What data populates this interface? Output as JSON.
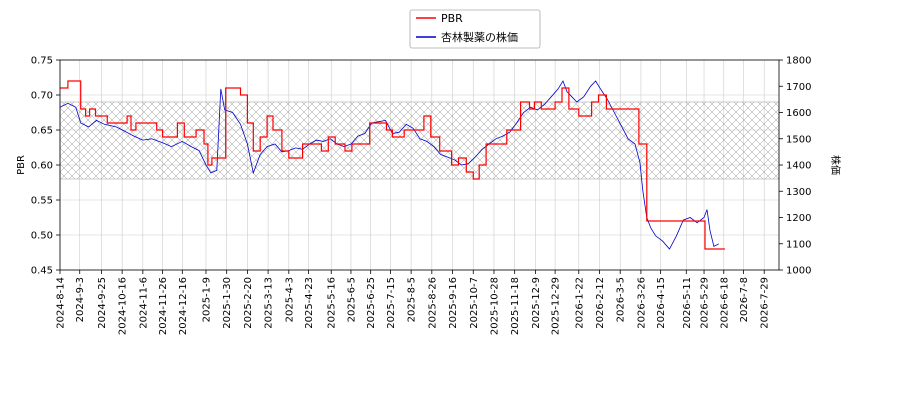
{
  "chart_data": {
    "type": "line",
    "legend": {
      "placement": "top-center",
      "entries": [
        "PBR",
        "杏林製薬の株価"
      ]
    },
    "ylabel_left": "PBR",
    "ylabel_right": "株価",
    "ylim_left": [
      0.45,
      0.75
    ],
    "ylim_right": [
      1000,
      1800
    ],
    "yticks_left": [
      "0.45",
      "0.50",
      "0.55",
      "0.60",
      "0.65",
      "0.70",
      "0.75"
    ],
    "yticks_right": [
      "1000",
      "1100",
      "1200",
      "1300",
      "1400",
      "1500",
      "1600",
      "1700",
      "1800"
    ],
    "x_range": [
      "2024-8-14",
      "2026-8-13"
    ],
    "xticks": [
      "2024-8-14",
      "2024-9-3",
      "2024-9-25",
      "2024-10-16",
      "2024-11-6",
      "2024-11-26",
      "2024-12-16",
      "2025-1-9",
      "2025-1-30",
      "2025-2-20",
      "2025-3-13",
      "2025-4-3",
      "2025-4-23",
      "2025-5-16",
      "2025-6-5",
      "2025-6-25",
      "2025-7-15",
      "2025-8-5",
      "2025-8-26",
      "2025-9-16",
      "2025-10-7",
      "2025-10-28",
      "2025-11-18",
      "2025-12-9",
      "2025-12-29",
      "2026-1-22",
      "2026-2-12",
      "2026-3-5",
      "2026-3-26",
      "2026-4-15",
      "2026-5-11",
      "2026-5-29",
      "2026-6-18",
      "2026-7-8",
      "2026-7-29"
    ],
    "grid": true,
    "band": {
      "axis": "left",
      "range": [
        0.58,
        0.69
      ],
      "style": "crosshatch"
    },
    "series": [
      {
        "name": "PBR",
        "axis": "left",
        "color": "#ff0000",
        "style": "step",
        "points": [
          [
            "2024-8-14",
            0.71
          ],
          [
            "2024-8-22",
            0.72
          ],
          [
            "2024-9-4",
            0.68
          ],
          [
            "2024-9-9",
            0.67
          ],
          [
            "2024-9-13",
            0.68
          ],
          [
            "2024-9-19",
            0.67
          ],
          [
            "2024-10-1",
            0.66
          ],
          [
            "2024-10-21",
            0.67
          ],
          [
            "2024-10-25",
            0.65
          ],
          [
            "2024-10-30",
            0.66
          ],
          [
            "2024-11-20",
            0.65
          ],
          [
            "2024-11-26",
            0.64
          ],
          [
            "2024-12-11",
            0.66
          ],
          [
            "2024-12-18",
            0.64
          ],
          [
            "2024-12-30",
            0.65
          ],
          [
            "2025-1-7",
            0.63
          ],
          [
            "2025-1-11",
            0.6
          ],
          [
            "2025-1-15",
            0.61
          ],
          [
            "2025-1-29",
            0.71
          ],
          [
            "2025-2-13",
            0.7
          ],
          [
            "2025-2-20",
            0.66
          ],
          [
            "2025-2-26",
            0.62
          ],
          [
            "2025-3-5",
            0.64
          ],
          [
            "2025-3-12",
            0.67
          ],
          [
            "2025-3-18",
            0.65
          ],
          [
            "2025-3-27",
            0.62
          ],
          [
            "2025-4-3",
            0.61
          ],
          [
            "2025-4-17",
            0.63
          ],
          [
            "2025-5-6",
            0.62
          ],
          [
            "2025-5-13",
            0.64
          ],
          [
            "2025-5-20",
            0.63
          ],
          [
            "2025-5-30",
            0.62
          ],
          [
            "2025-6-6",
            0.63
          ],
          [
            "2025-6-24",
            0.66
          ],
          [
            "2025-7-11",
            0.65
          ],
          [
            "2025-7-17",
            0.64
          ],
          [
            "2025-7-29",
            0.65
          ],
          [
            "2025-8-18",
            0.67
          ],
          [
            "2025-8-25",
            0.64
          ],
          [
            "2025-9-3",
            0.62
          ],
          [
            "2025-9-15",
            0.6
          ],
          [
            "2025-9-22",
            0.61
          ],
          [
            "2025-9-30",
            0.59
          ],
          [
            "2025-10-7",
            0.58
          ],
          [
            "2025-10-13",
            0.6
          ],
          [
            "2025-10-20",
            0.63
          ],
          [
            "2025-11-10",
            0.65
          ],
          [
            "2025-11-24",
            0.69
          ],
          [
            "2025-12-3",
            0.68
          ],
          [
            "2025-12-8",
            0.69
          ],
          [
            "2025-12-15",
            0.68
          ],
          [
            "2025-12-29",
            0.69
          ],
          [
            "2026-1-5",
            0.71
          ],
          [
            "2026-1-12",
            0.68
          ],
          [
            "2026-1-22",
            0.67
          ],
          [
            "2026-2-4",
            0.69
          ],
          [
            "2026-2-11",
            0.7
          ],
          [
            "2026-2-19",
            0.68
          ],
          [
            "2026-3-24",
            0.63
          ],
          [
            "2026-4-1",
            0.52
          ],
          [
            "2026-5-30",
            0.48
          ],
          [
            "2026-6-5",
            0.48
          ]
        ]
      },
      {
        "name": "杏林製薬の株価",
        "axis": "right",
        "color": "#0000cc",
        "style": "line",
        "points": [
          [
            "2024-8-14",
            1620
          ],
          [
            "2024-8-22",
            1635
          ],
          [
            "2024-8-30",
            1620
          ],
          [
            "2024-9-4",
            1560
          ],
          [
            "2024-9-12",
            1545
          ],
          [
            "2024-9-20",
            1570
          ],
          [
            "2024-9-28",
            1555
          ],
          [
            "2024-10-10",
            1545
          ],
          [
            "2024-10-18",
            1530
          ],
          [
            "2024-10-28",
            1510
          ],
          [
            "2024-11-6",
            1495
          ],
          [
            "2024-11-15",
            1500
          ],
          [
            "2024-11-26",
            1485
          ],
          [
            "2024-12-5",
            1470
          ],
          [
            "2024-12-16",
            1490
          ],
          [
            "2024-12-25",
            1470
          ],
          [
            "2025-1-2",
            1455
          ],
          [
            "2025-1-9",
            1400
          ],
          [
            "2025-1-14",
            1370
          ],
          [
            "2025-1-20",
            1380
          ],
          [
            "2025-1-24",
            1690
          ],
          [
            "2025-1-28",
            1610
          ],
          [
            "2025-2-5",
            1600
          ],
          [
            "2025-2-13",
            1555
          ],
          [
            "2025-2-20",
            1480
          ],
          [
            "2025-2-26",
            1370
          ],
          [
            "2025-3-5",
            1440
          ],
          [
            "2025-3-12",
            1470
          ],
          [
            "2025-3-20",
            1480
          ],
          [
            "2025-3-27",
            1450
          ],
          [
            "2025-4-3",
            1455
          ],
          [
            "2025-4-10",
            1465
          ],
          [
            "2025-4-17",
            1460
          ],
          [
            "2025-4-24",
            1480
          ],
          [
            "2025-5-1",
            1495
          ],
          [
            "2025-5-8",
            1490
          ],
          [
            "2025-5-15",
            1500
          ],
          [
            "2025-5-22",
            1480
          ],
          [
            "2025-5-29",
            1470
          ],
          [
            "2025-6-5",
            1480
          ],
          [
            "2025-6-12",
            1510
          ],
          [
            "2025-6-19",
            1520
          ],
          [
            "2025-6-26",
            1560
          ],
          [
            "2025-7-3",
            1565
          ],
          [
            "2025-7-10",
            1570
          ],
          [
            "2025-7-17",
            1520
          ],
          [
            "2025-7-24",
            1525
          ],
          [
            "2025-7-31",
            1555
          ],
          [
            "2025-8-7",
            1540
          ],
          [
            "2025-8-14",
            1500
          ],
          [
            "2025-8-21",
            1490
          ],
          [
            "2025-8-28",
            1470
          ],
          [
            "2025-9-4",
            1440
          ],
          [
            "2025-9-11",
            1430
          ],
          [
            "2025-9-18",
            1420
          ],
          [
            "2025-9-25",
            1400
          ],
          [
            "2025-10-2",
            1405
          ],
          [
            "2025-10-9",
            1430
          ],
          [
            "2025-10-16",
            1460
          ],
          [
            "2025-10-23",
            1480
          ],
          [
            "2025-10-30",
            1500
          ],
          [
            "2025-11-6",
            1510
          ],
          [
            "2025-11-13",
            1525
          ],
          [
            "2025-11-20",
            1560
          ],
          [
            "2025-11-27",
            1600
          ],
          [
            "2025-12-4",
            1620
          ],
          [
            "2025-12-11",
            1610
          ],
          [
            "2025-12-18",
            1630
          ],
          [
            "2025-12-25",
            1660
          ],
          [
            "2026-1-1",
            1690
          ],
          [
            "2026-1-6",
            1720
          ],
          [
            "2026-1-10",
            1680
          ],
          [
            "2026-1-15",
            1660
          ],
          [
            "2026-1-20",
            1640
          ],
          [
            "2026-1-27",
            1660
          ],
          [
            "2026-2-3",
            1700
          ],
          [
            "2026-2-8",
            1720
          ],
          [
            "2026-2-13",
            1690
          ],
          [
            "2026-2-20",
            1650
          ],
          [
            "2026-2-27",
            1600
          ],
          [
            "2026-3-6",
            1550
          ],
          [
            "2026-3-13",
            1500
          ],
          [
            "2026-3-20",
            1480
          ],
          [
            "2026-3-25",
            1410
          ],
          [
            "2026-3-28",
            1300
          ],
          [
            "2026-4-1",
            1200
          ],
          [
            "2026-4-5",
            1160
          ],
          [
            "2026-4-10",
            1130
          ],
          [
            "2026-4-17",
            1110
          ],
          [
            "2026-4-24",
            1080
          ],
          [
            "2026-5-1",
            1130
          ],
          [
            "2026-5-8",
            1190
          ],
          [
            "2026-5-15",
            1200
          ],
          [
            "2026-5-22",
            1180
          ],
          [
            "2026-5-29",
            1200
          ],
          [
            "2026-6-1",
            1230
          ],
          [
            "2026-6-4",
            1150
          ],
          [
            "2026-6-8",
            1090
          ],
          [
            "2026-6-13",
            1100
          ]
        ]
      }
    ]
  }
}
